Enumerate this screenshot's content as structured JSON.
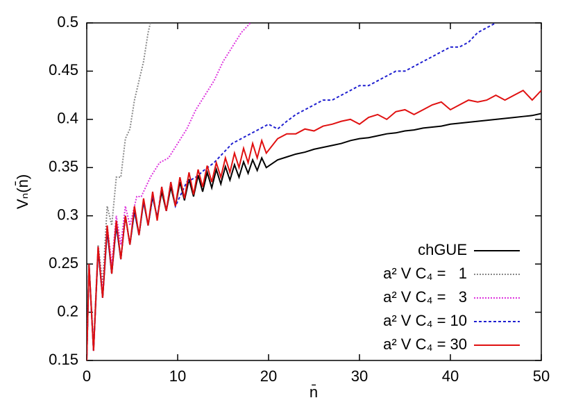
{
  "chart_data": {
    "type": "line",
    "xlabel": "n̄",
    "ylabel": "Vₙ(n̄)",
    "xlim": [
      0,
      50
    ],
    "ylim": [
      0.15,
      0.5
    ],
    "xticks": [
      0,
      10,
      20,
      30,
      40,
      50
    ],
    "yticks": [
      0.15,
      0.2,
      0.25,
      0.3,
      0.35,
      0.4,
      0.45,
      0.5
    ],
    "grid": false,
    "legend": "bottom-right",
    "series": [
      {
        "name": "chGUE",
        "color": "#000000",
        "dash": "solid",
        "x": [
          0,
          0.25,
          0.75,
          1.25,
          1.75,
          2.25,
          2.75,
          3.25,
          3.75,
          4.25,
          4.75,
          5.25,
          5.75,
          6.25,
          6.75,
          7.25,
          7.75,
          8.25,
          8.75,
          9.25,
          9.75,
          10.25,
          10.75,
          11.25,
          11.75,
          12.25,
          12.75,
          13.25,
          13.75,
          14.25,
          14.75,
          15.25,
          15.75,
          16.25,
          16.75,
          17.25,
          17.75,
          18.25,
          18.75,
          19.25,
          19.75,
          21,
          22,
          23,
          24,
          25,
          26,
          27,
          28,
          29,
          30,
          31,
          32,
          33,
          34,
          35,
          36,
          37,
          38,
          39,
          40,
          41,
          42,
          43,
          44,
          45,
          46,
          47,
          48,
          49,
          50
        ],
        "values": [
          0.15,
          0.25,
          0.16,
          0.265,
          0.215,
          0.285,
          0.24,
          0.29,
          0.255,
          0.3,
          0.27,
          0.305,
          0.28,
          0.315,
          0.29,
          0.32,
          0.298,
          0.325,
          0.305,
          0.33,
          0.31,
          0.335,
          0.316,
          0.338,
          0.32,
          0.342,
          0.325,
          0.345,
          0.329,
          0.348,
          0.333,
          0.351,
          0.337,
          0.353,
          0.34,
          0.356,
          0.344,
          0.358,
          0.347,
          0.36,
          0.35,
          0.358,
          0.361,
          0.364,
          0.366,
          0.369,
          0.371,
          0.373,
          0.375,
          0.378,
          0.38,
          0.381,
          0.383,
          0.385,
          0.386,
          0.388,
          0.389,
          0.391,
          0.392,
          0.393,
          0.395,
          0.396,
          0.397,
          0.398,
          0.399,
          0.4,
          0.401,
          0.402,
          0.403,
          0.404,
          0.406
        ]
      },
      {
        "name": "a² V C₄ =   1",
        "color": "#888888",
        "dash": "dot",
        "x": [
          0,
          0.25,
          0.75,
          1.25,
          1.75,
          2.25,
          2.75,
          3.25,
          3.75,
          4.25,
          4.75,
          5.25,
          5.75,
          6.25,
          6.75,
          7
        ],
        "values": [
          0.15,
          0.25,
          0.165,
          0.27,
          0.23,
          0.31,
          0.29,
          0.34,
          0.34,
          0.38,
          0.39,
          0.42,
          0.44,
          0.46,
          0.49,
          0.5
        ]
      },
      {
        "name": "a² V C₄ =   3",
        "color": "#dd33dd",
        "dash": "dot",
        "x": [
          0,
          0.25,
          0.75,
          1.25,
          1.75,
          2.25,
          2.75,
          3.25,
          3.75,
          4.25,
          4.75,
          5.5,
          6,
          7,
          8,
          9,
          10,
          11,
          12,
          13,
          14,
          15,
          16,
          17,
          18
        ],
        "values": [
          0.15,
          0.25,
          0.16,
          0.268,
          0.22,
          0.29,
          0.25,
          0.3,
          0.27,
          0.31,
          0.29,
          0.32,
          0.32,
          0.34,
          0.355,
          0.36,
          0.375,
          0.39,
          0.41,
          0.425,
          0.44,
          0.46,
          0.475,
          0.49,
          0.5
        ]
      },
      {
        "name": "a² V C₄ = 10",
        "color": "#1f1fd0",
        "dash": "dash",
        "x": [
          0,
          0.25,
          0.75,
          1.25,
          1.75,
          2.25,
          2.75,
          3.25,
          3.75,
          4.25,
          4.75,
          5.25,
          5.75,
          6.25,
          6.75,
          7.25,
          7.75,
          8.25,
          8.75,
          9.25,
          9.75,
          11,
          12,
          13,
          14,
          15,
          16,
          17,
          18,
          19,
          20,
          21,
          22,
          23,
          24,
          25,
          26,
          27,
          28,
          29,
          30,
          31,
          32,
          33,
          34,
          35,
          36,
          37,
          38,
          39,
          40,
          41,
          42,
          43,
          44,
          45
        ],
        "values": [
          0.15,
          0.25,
          0.16,
          0.265,
          0.215,
          0.285,
          0.24,
          0.29,
          0.255,
          0.3,
          0.27,
          0.305,
          0.28,
          0.315,
          0.29,
          0.32,
          0.298,
          0.33,
          0.305,
          0.335,
          0.31,
          0.335,
          0.34,
          0.348,
          0.355,
          0.365,
          0.375,
          0.38,
          0.385,
          0.39,
          0.395,
          0.39,
          0.398,
          0.405,
          0.41,
          0.415,
          0.42,
          0.42,
          0.425,
          0.43,
          0.435,
          0.435,
          0.44,
          0.445,
          0.45,
          0.45,
          0.455,
          0.46,
          0.465,
          0.47,
          0.475,
          0.475,
          0.48,
          0.49,
          0.495,
          0.5
        ]
      },
      {
        "name": "a² V C₄ = 30",
        "color": "#e01010",
        "dash": "solid",
        "x": [
          0,
          0.25,
          0.75,
          1.25,
          1.75,
          2.25,
          2.75,
          3.25,
          3.75,
          4.25,
          4.75,
          5.25,
          5.75,
          6.25,
          6.75,
          7.25,
          7.75,
          8.25,
          8.75,
          9.25,
          9.75,
          10.25,
          10.75,
          11.25,
          11.75,
          12.25,
          12.75,
          13.25,
          13.75,
          14.25,
          14.75,
          15.25,
          15.75,
          16.25,
          16.75,
          17.25,
          17.75,
          18.25,
          18.75,
          19.25,
          19.75,
          21,
          22,
          23,
          24,
          25,
          26,
          27,
          28,
          29,
          30,
          31,
          32,
          33,
          34,
          35,
          36,
          37,
          38,
          39,
          40,
          41,
          42,
          43,
          44,
          45,
          46,
          47,
          48,
          49,
          50
        ],
        "values": [
          0.15,
          0.25,
          0.16,
          0.268,
          0.215,
          0.29,
          0.24,
          0.295,
          0.255,
          0.3,
          0.27,
          0.31,
          0.28,
          0.318,
          0.29,
          0.325,
          0.295,
          0.33,
          0.305,
          0.335,
          0.31,
          0.34,
          0.318,
          0.345,
          0.322,
          0.348,
          0.33,
          0.352,
          0.335,
          0.355,
          0.34,
          0.36,
          0.345,
          0.365,
          0.35,
          0.37,
          0.355,
          0.375,
          0.36,
          0.378,
          0.365,
          0.38,
          0.385,
          0.385,
          0.39,
          0.388,
          0.393,
          0.395,
          0.398,
          0.4,
          0.395,
          0.402,
          0.405,
          0.4,
          0.408,
          0.41,
          0.405,
          0.41,
          0.415,
          0.418,
          0.41,
          0.415,
          0.42,
          0.418,
          0.42,
          0.425,
          0.42,
          0.425,
          0.43,
          0.42,
          0.43
        ]
      }
    ]
  }
}
